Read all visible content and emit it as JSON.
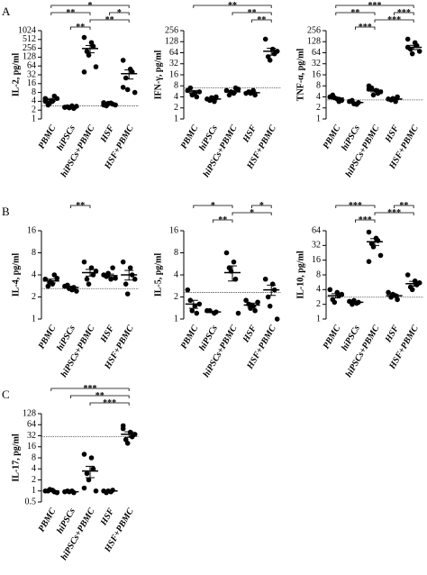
{
  "chart_data": [
    {
      "type": "dot",
      "panel_label": "A",
      "ylabel": "IL-2, pg/ml",
      "log_scale": true,
      "categories": [
        "PBMC",
        "hiPSCs",
        "hiPSCs+PBMC",
        "HSF",
        "HSF+PBMC"
      ],
      "points": [
        [
          5,
          4,
          6,
          3,
          3.5,
          5,
          4
        ],
        [
          2.5,
          2.8,
          2.3,
          2.6,
          2.4,
          2.7,
          2.5
        ],
        [
          600,
          400,
          300,
          200,
          150,
          60,
          40
        ],
        [
          3,
          3.5,
          3.2,
          2.8,
          3.4,
          3,
          3.6
        ],
        [
          100,
          50,
          40,
          25,
          10,
          8,
          12
        ]
      ],
      "means": [
        4.5,
        2.5,
        250,
        3.2,
        35
      ],
      "errors": [
        0.5,
        0.1,
        70,
        0.1,
        12
      ],
      "threshold": 2.8,
      "ylim": [
        1,
        1024
      ],
      "yticks": [
        1,
        2,
        4,
        8,
        16,
        32,
        64,
        128,
        256,
        512,
        1024
      ],
      "brackets": [
        {
          "pair": [
            "PBMC",
            "HSF+PBMC"
          ],
          "label": "*"
        },
        {
          "pair": [
            "PBMC",
            "hiPSCs+PBMC"
          ],
          "label": "**"
        },
        {
          "pair": [
            "hiPSCs+PBMC",
            "HSF+PBMC"
          ],
          "label": "**"
        },
        {
          "pair": [
            "hiPSCs",
            "hiPSCs+PBMC"
          ],
          "label": "**"
        },
        {
          "pair": [
            "HSF",
            "HSF+PBMC"
          ],
          "label": "*"
        }
      ]
    },
    {
      "type": "dot",
      "ylabel": "IFN-γ, pg/ml",
      "log_scale": true,
      "categories": [
        "PBMC",
        "hiPSCs",
        "hiPSCs+PBMC",
        "HSF",
        "HSF+PBMC"
      ],
      "points": [
        [
          6,
          5,
          4,
          7,
          4.5,
          5.5
        ],
        [
          3.5,
          3,
          4,
          3.2,
          3.8
        ],
        [
          6,
          5,
          7,
          4.5,
          5.5,
          6.5
        ],
        [
          5,
          6,
          4.5,
          5.5,
          5
        ],
        [
          150,
          80,
          60,
          50,
          40,
          70
        ]
      ],
      "means": [
        5.5,
        3.5,
        5.5,
        5.2,
        70
      ],
      "errors": [
        0.5,
        0.2,
        0.4,
        0.3,
        15
      ],
      "threshold": 7,
      "ylim": [
        1,
        256
      ],
      "yticks": [
        1,
        2,
        4,
        8,
        16,
        32,
        64,
        128,
        256
      ],
      "brackets": [
        {
          "pair": [
            "PBMC",
            "HSF+PBMC"
          ],
          "label": "**"
        },
        {
          "pair": [
            "hiPSCs+PBMC",
            "HSF+PBMC"
          ],
          "label": "**"
        },
        {
          "pair": [
            "HSF",
            "HSF+PBMC"
          ],
          "label": "**"
        }
      ]
    },
    {
      "type": "dot",
      "ylabel": "TNF-α, pg/ml",
      "log_scale": true,
      "categories": [
        "PBMC",
        "hiPSCs",
        "hiPSCs+PBMC",
        "HSF",
        "HSF+PBMC"
      ],
      "points": [
        [
          4,
          3.5,
          3,
          4.5,
          3.8,
          3.2
        ],
        [
          3,
          2.5,
          2.8,
          3.2,
          2.6
        ],
        [
          8,
          6,
          5,
          7,
          4.5,
          5.5,
          6.5
        ],
        [
          3.5,
          3,
          4,
          3.3,
          3.6
        ],
        [
          150,
          120,
          100,
          80,
          60,
          70,
          90
        ]
      ],
      "means": [
        3.7,
        2.8,
        6,
        3.5,
        90
      ],
      "errors": [
        0.2,
        0.1,
        0.5,
        0.15,
        12
      ],
      "threshold": 3.3,
      "ylim": [
        1,
        256
      ],
      "yticks": [
        1,
        2,
        4,
        8,
        16,
        32,
        64,
        128,
        256
      ],
      "brackets": [
        {
          "pair": [
            "PBMC",
            "HSF+PBMC"
          ],
          "label": "***"
        },
        {
          "pair": [
            "PBMC",
            "hiPSCs+PBMC"
          ],
          "label": "**"
        },
        {
          "pair": [
            "hiPSCs+PBMC",
            "HSF+PBMC"
          ],
          "label": "***"
        },
        {
          "pair": [
            "hiPSCs",
            "hiPSCs+PBMC"
          ],
          "label": "***"
        },
        {
          "pair": [
            "HSF",
            "HSF+PBMC"
          ],
          "label": "***"
        }
      ]
    },
    {
      "type": "dot",
      "panel_label": "B",
      "ylabel": "IL-4, pg/ml",
      "log_scale": true,
      "categories": [
        "PBMC",
        "hiPSCs",
        "hiPSCs+PBMC",
        "HSF",
        "HSF+PBMC"
      ],
      "points": [
        [
          3.5,
          3,
          4,
          2.8,
          3.2,
          3.6
        ],
        [
          2.8,
          2.5,
          2.7,
          2.9,
          2.6,
          2.4
        ],
        [
          6,
          5,
          4,
          3.5,
          3,
          4.5
        ],
        [
          4,
          3.5,
          5,
          3.8,
          4.2,
          3.6
        ],
        [
          6,
          5,
          4,
          3,
          2.2,
          3.5
        ]
      ],
      "means": [
        3.3,
        2.7,
        4.3,
        3.9,
        4
      ],
      "errors": [
        0.2,
        0.1,
        0.45,
        0.2,
        0.6
      ],
      "threshold": 2.6,
      "ylim": [
        1,
        16
      ],
      "yticks": [
        1,
        2,
        4,
        8,
        16
      ],
      "brackets": [
        {
          "pair": [
            "hiPSCs",
            "hiPSCs+PBMC"
          ],
          "label": "**"
        }
      ]
    },
    {
      "type": "dot",
      "ylabel": "IL-5, pg/ml",
      "log_scale": true,
      "categories": [
        "PBMC",
        "hiPSCs",
        "hiPSCs+PBMC",
        "HSF",
        "HSF+PBMC"
      ],
      "points": [
        [
          2.5,
          1.5,
          1.2,
          1.8,
          1.3,
          1.6
        ],
        [
          1.3,
          1.2,
          1.25,
          1.3
        ],
        [
          8,
          6,
          3.5,
          5,
          4.5,
          1.2
        ],
        [
          1.8,
          1.5,
          1.3,
          1.6,
          1.4,
          1.7
        ],
        [
          3.5,
          3,
          2.5,
          2,
          1.5,
          1
        ]
      ],
      "means": [
        1.6,
        1.25,
        4.3,
        1.55,
        2.5
      ],
      "errors": [
        0.2,
        0.03,
        1,
        0.1,
        0.4
      ],
      "threshold": 2.3,
      "ylim": [
        1,
        16
      ],
      "yticks": [
        1,
        2,
        4,
        8,
        16
      ],
      "brackets": [
        {
          "pair": [
            "PBMC",
            "hiPSCs+PBMC"
          ],
          "label": "*"
        },
        {
          "pair": [
            "hiPSCs+PBMC",
            "HSF+PBMC"
          ],
          "label": "*"
        },
        {
          "pair": [
            "hiPSCs",
            "hiPSCs+PBMC"
          ],
          "label": "**"
        },
        {
          "pair": [
            "HSF",
            "HSF+PBMC"
          ],
          "label": "*"
        }
      ]
    },
    {
      "type": "dot",
      "ylabel": "IL-10, pg/ml",
      "log_scale": true,
      "categories": [
        "PBMC",
        "hiPSCs",
        "hiPSCs+PBMC",
        "HSF",
        "HSF+PBMC"
      ],
      "points": [
        [
          4,
          3.5,
          3,
          2.5,
          2.2,
          3.2
        ],
        [
          2.3,
          2.1,
          2.2,
          2,
          2.4
        ],
        [
          60,
          45,
          40,
          35,
          30,
          20,
          15
        ],
        [
          3.5,
          3,
          2.5,
          2.8,
          3.2
        ],
        [
          8,
          6,
          5,
          4.5,
          4,
          5.5
        ]
      ],
      "means": [
        3,
        2.2,
        38,
        3,
        5.3
      ],
      "errors": [
        0.3,
        0.07,
        6,
        0.17,
        0.6
      ],
      "threshold": 2.8,
      "ylim": [
        1,
        64
      ],
      "yticks": [
        1,
        2,
        4,
        8,
        16,
        32,
        64
      ],
      "brackets": [
        {
          "pair": [
            "PBMC",
            "hiPSCs+PBMC"
          ],
          "label": "***"
        },
        {
          "pair": [
            "hiPSCs+PBMC",
            "HSF+PBMC"
          ],
          "label": "***"
        },
        {
          "pair": [
            "hiPSCs",
            "hiPSCs+PBMC"
          ],
          "label": "***"
        },
        {
          "pair": [
            "HSF",
            "HSF+PBMC"
          ],
          "label": "**"
        }
      ]
    },
    {
      "type": "dot",
      "panel_label": "C",
      "ylabel": "IL-17, pg/ml",
      "log_scale": true,
      "categories": [
        "PBMC",
        "hiPSCs",
        "hiPSCs+PBMC",
        "HSF",
        "HSF+PBMC"
      ],
      "points": [
        [
          1,
          1.05,
          0.95,
          1,
          1.1,
          0.9
        ],
        [
          0.95,
          1,
          0.9,
          1,
          0.95
        ],
        [
          10,
          8,
          4,
          3,
          2,
          1,
          1.2
        ],
        [
          1,
          0.95,
          1.05,
          0.9,
          1
        ],
        [
          60,
          40,
          30,
          25,
          20,
          35,
          50
        ]
      ],
      "means": [
        1,
        0.95,
        3.5,
        1,
        35
      ],
      "errors": [
        0.03,
        0.02,
        1.2,
        0.03,
        6
      ],
      "threshold": 30,
      "ylim": [
        0.5,
        128
      ],
      "yticks": [
        0.5,
        1,
        2,
        4,
        8,
        16,
        32,
        64,
        128
      ],
      "brackets": [
        {
          "pair": [
            "PBMC",
            "HSF+PBMC"
          ],
          "label": "***"
        },
        {
          "pair": [
            "hiPSCs",
            "HSF+PBMC"
          ],
          "label": "**"
        },
        {
          "pair": [
            "hiPSCs+PBMC",
            "HSF+PBMC"
          ],
          "label": "***"
        }
      ]
    }
  ]
}
